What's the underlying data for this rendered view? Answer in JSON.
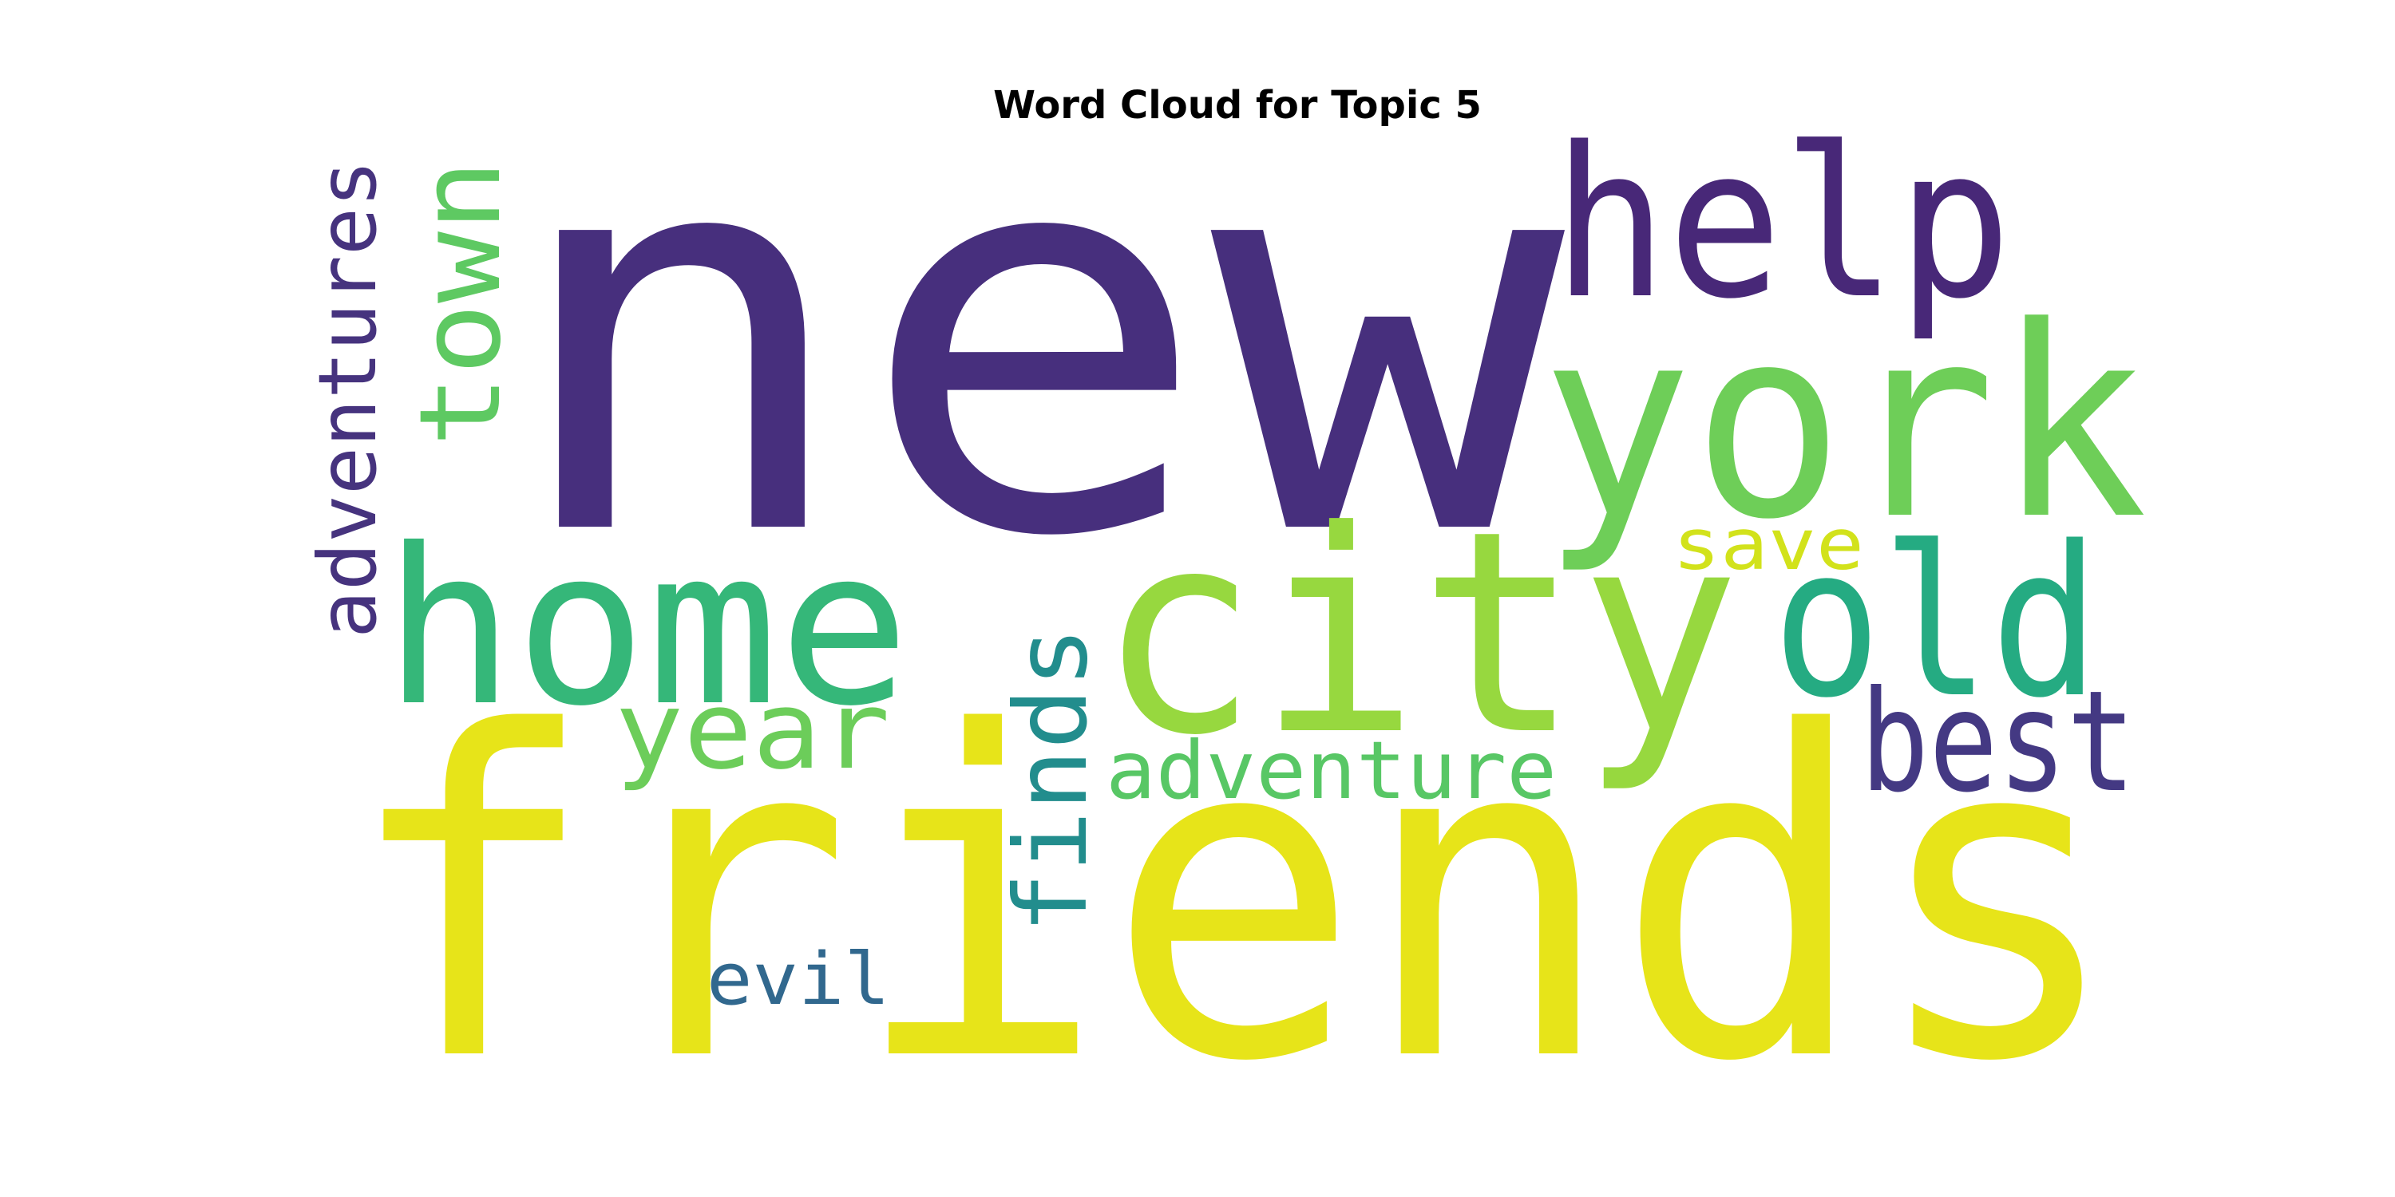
{
  "title": "Word Cloud for Topic 5",
  "chart_data": {
    "type": "wordcloud",
    "title": "Word Cloud for Topic 5",
    "colormap": "viridis",
    "background": "#ffffff",
    "words": [
      {
        "text": "new",
        "color": "#472f7d",
        "orientation": "horizontal"
      },
      {
        "text": "friends",
        "color": "#e7e419",
        "orientation": "horizontal"
      },
      {
        "text": "city",
        "color": "#97d83f",
        "orientation": "horizontal"
      },
      {
        "text": "york",
        "color": "#6ece58",
        "orientation": "horizontal"
      },
      {
        "text": "home",
        "color": "#35b779",
        "orientation": "horizontal"
      },
      {
        "text": "help",
        "color": "#482878",
        "orientation": "horizontal"
      },
      {
        "text": "old",
        "color": "#25ab82",
        "orientation": "horizontal"
      },
      {
        "text": "town",
        "color": "#5ec962",
        "orientation": "vertical"
      },
      {
        "text": "best",
        "color": "#443983",
        "orientation": "horizontal"
      },
      {
        "text": "adventures",
        "color": "#46337e",
        "orientation": "vertical"
      },
      {
        "text": "year",
        "color": "#6ccd5a",
        "orientation": "horizontal"
      },
      {
        "text": "finds",
        "color": "#228d8d",
        "orientation": "vertical"
      },
      {
        "text": "adventure",
        "color": "#58c765",
        "orientation": "horizontal"
      },
      {
        "text": "save",
        "color": "#d2e21b",
        "orientation": "horizontal"
      },
      {
        "text": "evil",
        "color": "#31688e",
        "orientation": "horizontal"
      }
    ]
  }
}
